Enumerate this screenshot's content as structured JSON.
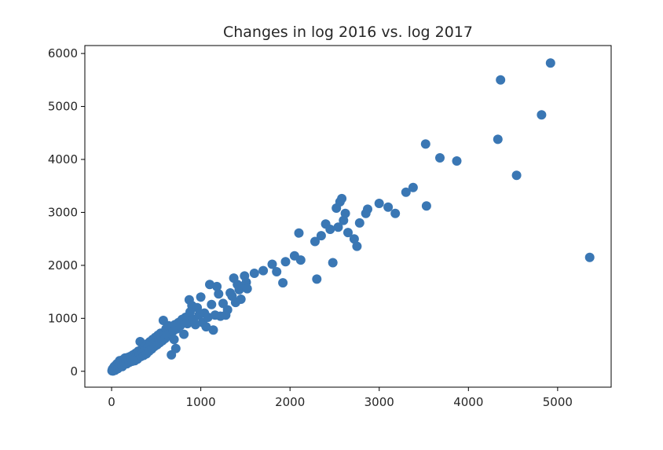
{
  "chart_data": {
    "type": "scatter",
    "title": "Changes in log 2016 vs. log 2017",
    "xlabel": "",
    "ylabel": "",
    "xlim": [
      -300,
      5600
    ],
    "ylim": [
      -300,
      6150
    ],
    "xticks": [
      0,
      1000,
      2000,
      3000,
      4000,
      5000
    ],
    "yticks": [
      0,
      1000,
      2000,
      3000,
      4000,
      5000,
      6000
    ],
    "grid": false,
    "legend": "none",
    "marker_color": "#3a77b4",
    "points": [
      [
        5,
        10
      ],
      [
        10,
        40
      ],
      [
        15,
        5
      ],
      [
        20,
        60
      ],
      [
        25,
        30
      ],
      [
        30,
        90
      ],
      [
        40,
        20
      ],
      [
        45,
        110
      ],
      [
        50,
        70
      ],
      [
        60,
        140
      ],
      [
        70,
        50
      ],
      [
        75,
        160
      ],
      [
        85,
        100
      ],
      [
        90,
        200
      ],
      [
        100,
        130
      ],
      [
        110,
        180
      ],
      [
        120,
        90
      ],
      [
        130,
        220
      ],
      [
        140,
        160
      ],
      [
        150,
        250
      ],
      [
        160,
        200
      ],
      [
        170,
        140
      ],
      [
        180,
        260
      ],
      [
        190,
        210
      ],
      [
        200,
        170
      ],
      [
        210,
        280
      ],
      [
        220,
        230
      ],
      [
        230,
        190
      ],
      [
        240,
        310
      ],
      [
        250,
        260
      ],
      [
        260,
        200
      ],
      [
        270,
        340
      ],
      [
        280,
        290
      ],
      [
        290,
        230
      ],
      [
        300,
        380
      ],
      [
        310,
        330
      ],
      [
        320,
        560
      ],
      [
        330,
        280
      ],
      [
        340,
        420
      ],
      [
        350,
        360
      ],
      [
        360,
        300
      ],
      [
        370,
        460
      ],
      [
        380,
        400
      ],
      [
        390,
        330
      ],
      [
        400,
        520
      ],
      [
        410,
        440
      ],
      [
        420,
        380
      ],
      [
        430,
        560
      ],
      [
        440,
        490
      ],
      [
        450,
        420
      ],
      [
        460,
        600
      ],
      [
        470,
        520
      ],
      [
        480,
        470
      ],
      [
        490,
        640
      ],
      [
        500,
        560
      ],
      [
        510,
        500
      ],
      [
        520,
        680
      ],
      [
        530,
        600
      ],
      [
        540,
        540
      ],
      [
        550,
        720
      ],
      [
        560,
        640
      ],
      [
        570,
        580
      ],
      [
        580,
        960
      ],
      [
        590,
        700
      ],
      [
        600,
        620
      ],
      [
        610,
        800
      ],
      [
        620,
        740
      ],
      [
        630,
        680
      ],
      [
        640,
        860
      ],
      [
        650,
        780
      ],
      [
        660,
        720
      ],
      [
        670,
        310
      ],
      [
        680,
        820
      ],
      [
        690,
        760
      ],
      [
        700,
        600
      ],
      [
        710,
        880
      ],
      [
        720,
        430
      ],
      [
        730,
        800
      ],
      [
        750,
        920
      ],
      [
        770,
        860
      ],
      [
        790,
        980
      ],
      [
        810,
        700
      ],
      [
        830,
        1020
      ],
      [
        850,
        900
      ],
      [
        870,
        1350
      ],
      [
        880,
        1120
      ],
      [
        900,
        1240
      ],
      [
        920,
        980
      ],
      [
        940,
        880
      ],
      [
        960,
        1200
      ],
      [
        980,
        1060
      ],
      [
        1000,
        1400
      ],
      [
        1020,
        920
      ],
      [
        1040,
        1100
      ],
      [
        1060,
        840
      ],
      [
        1080,
        1020
      ],
      [
        1100,
        1640
      ],
      [
        1120,
        1260
      ],
      [
        1140,
        780
      ],
      [
        1160,
        1060
      ],
      [
        1180,
        1600
      ],
      [
        1200,
        1460
      ],
      [
        1220,
        1040
      ],
      [
        1250,
        1280
      ],
      [
        1280,
        1060
      ],
      [
        1300,
        1160
      ],
      [
        1330,
        1480
      ],
      [
        1350,
        1420
      ],
      [
        1370,
        1760
      ],
      [
        1390,
        1300
      ],
      [
        1410,
        1640
      ],
      [
        1430,
        1540
      ],
      [
        1450,
        1360
      ],
      [
        1470,
        1600
      ],
      [
        1490,
        1800
      ],
      [
        1510,
        1680
      ],
      [
        1520,
        1560
      ],
      [
        1600,
        1850
      ],
      [
        1700,
        1900
      ],
      [
        1800,
        2020
      ],
      [
        1850,
        1880
      ],
      [
        1920,
        1670
      ],
      [
        1950,
        2070
      ],
      [
        2050,
        2180
      ],
      [
        2100,
        2610
      ],
      [
        2120,
        2100
      ],
      [
        2280,
        2450
      ],
      [
        2300,
        1740
      ],
      [
        2350,
        2560
      ],
      [
        2400,
        2780
      ],
      [
        2450,
        2680
      ],
      [
        2480,
        2050
      ],
      [
        2520,
        3080
      ],
      [
        2540,
        2720
      ],
      [
        2560,
        3200
      ],
      [
        2580,
        3260
      ],
      [
        2600,
        2850
      ],
      [
        2620,
        2980
      ],
      [
        2650,
        2620
      ],
      [
        2720,
        2500
      ],
      [
        2750,
        2360
      ],
      [
        2780,
        2800
      ],
      [
        2850,
        2980
      ],
      [
        2870,
        3060
      ],
      [
        3000,
        3170
      ],
      [
        3100,
        3100
      ],
      [
        3180,
        2980
      ],
      [
        3300,
        3380
      ],
      [
        3380,
        3470
      ],
      [
        3520,
        4290
      ],
      [
        3530,
        3120
      ],
      [
        3680,
        4030
      ],
      [
        3870,
        3970
      ],
      [
        4330,
        4380
      ],
      [
        4360,
        5500
      ],
      [
        4540,
        3700
      ],
      [
        4820,
        4840
      ],
      [
        4920,
        5820
      ],
      [
        5360,
        2150
      ]
    ]
  }
}
